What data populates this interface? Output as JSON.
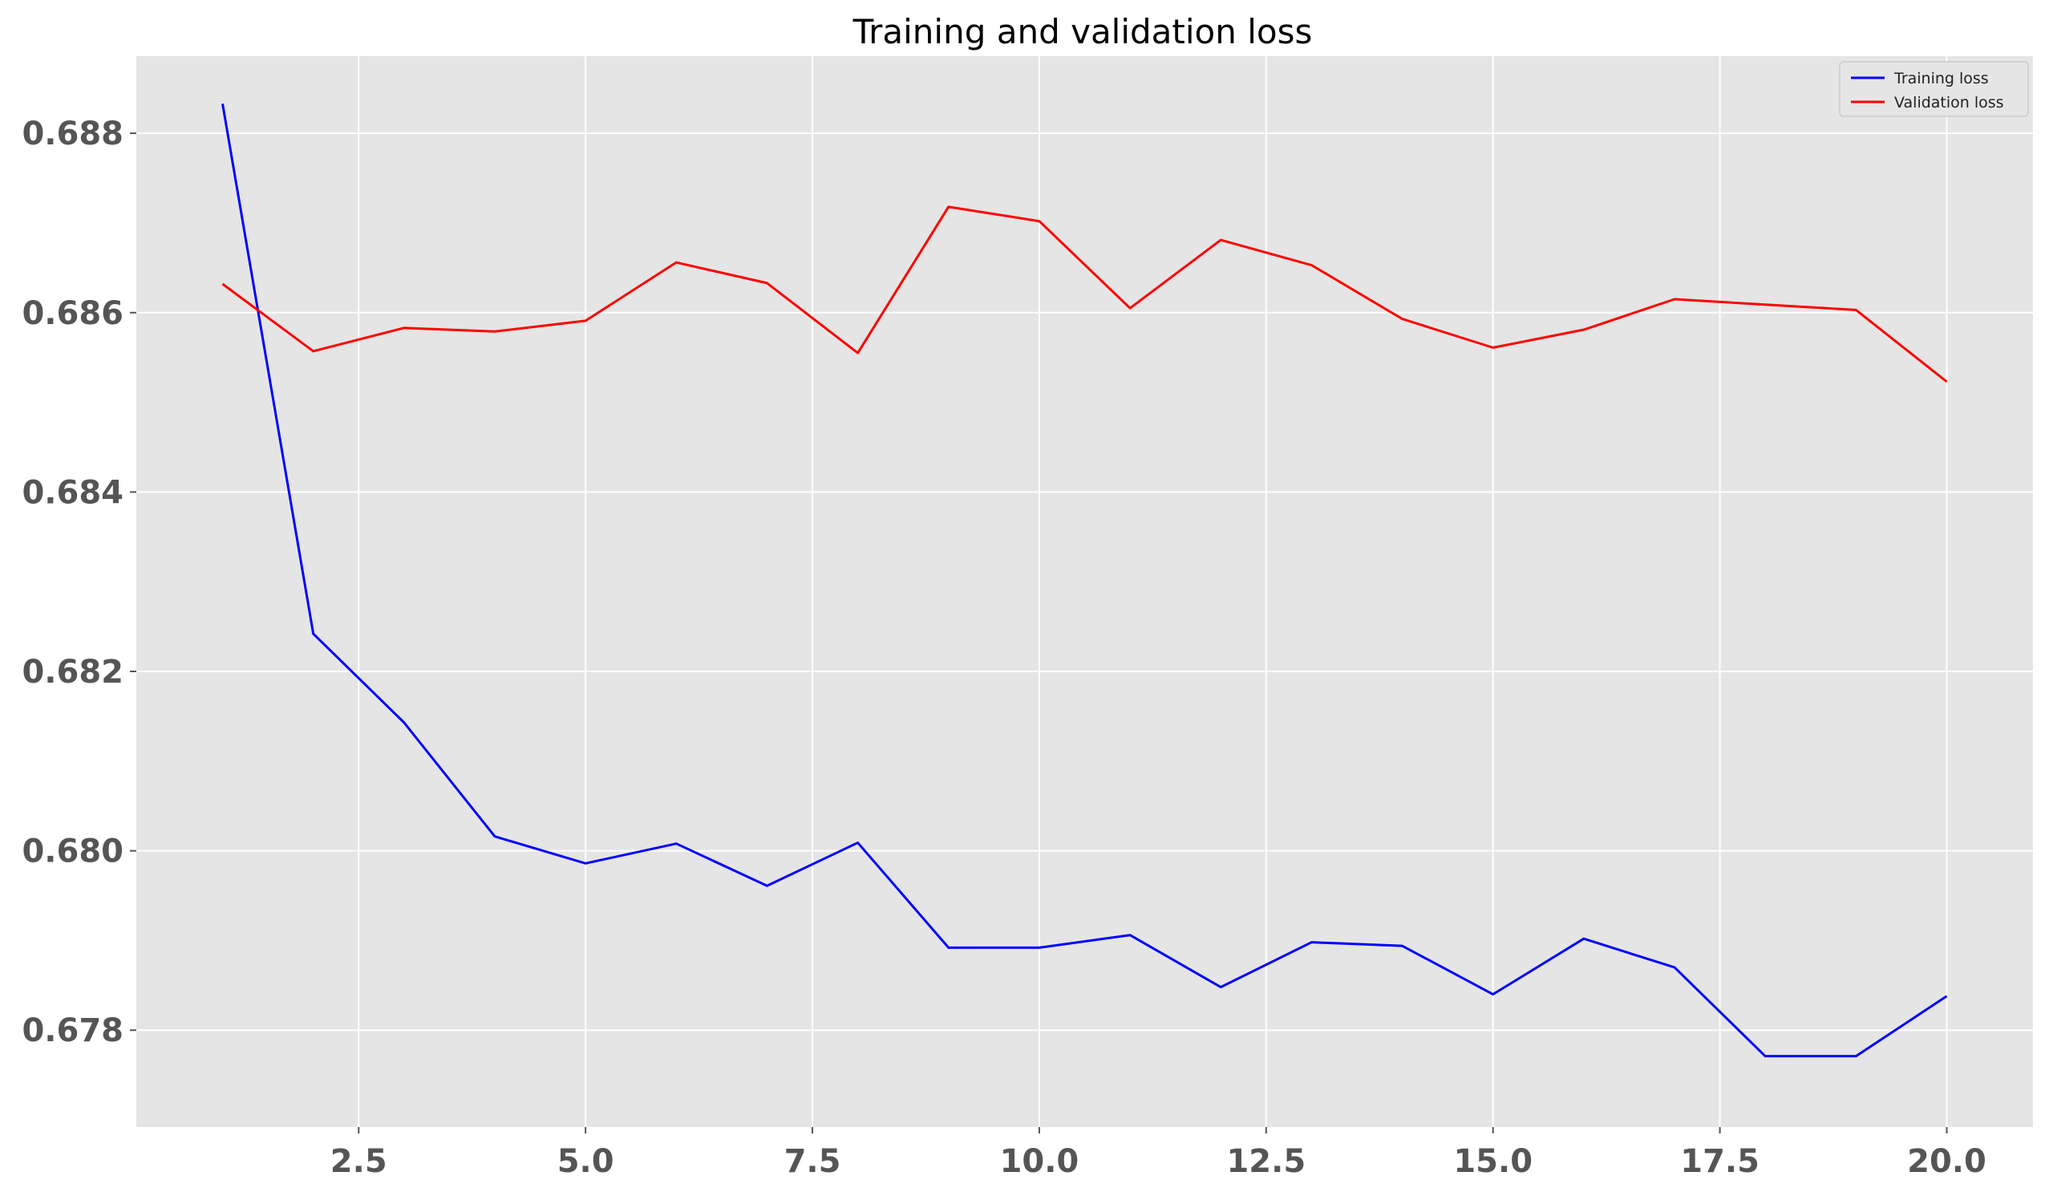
{
  "chart_data": {
    "type": "line",
    "title": "Training and validation loss",
    "xlabel": "",
    "ylabel": "",
    "x": [
      1,
      2,
      3,
      4,
      5,
      6,
      7,
      8,
      9,
      10,
      11,
      12,
      13,
      14,
      15,
      16,
      17,
      18,
      19,
      20
    ],
    "series": [
      {
        "name": "Training loss",
        "color": "#0000ff",
        "values": [
          0.68833,
          0.68242,
          0.68143,
          0.68016,
          0.67986,
          0.68008,
          0.67961,
          0.68009,
          0.67892,
          0.67892,
          0.67906,
          0.67848,
          0.67898,
          0.67894,
          0.6784,
          0.67902,
          0.6787,
          0.67771,
          0.67771,
          0.67838
        ]
      },
      {
        "name": "Validation loss",
        "color": "#ff0000",
        "values": [
          0.68632,
          0.68557,
          0.68583,
          0.68579,
          0.68591,
          0.68656,
          0.68633,
          0.68555,
          0.68718,
          0.68702,
          0.68605,
          0.68681,
          0.68653,
          0.68593,
          0.68561,
          0.68581,
          0.68615,
          0.68609,
          0.68603,
          0.68523
        ]
      }
    ],
    "xlim": [
      0.05,
      20.95
    ],
    "ylim": [
      0.67692,
      0.68886
    ],
    "xticks": [
      2.5,
      5.0,
      7.5,
      10.0,
      12.5,
      15.0,
      17.5,
      20.0
    ],
    "xtick_labels": [
      "2.5",
      "5.0",
      "7.5",
      "10.0",
      "12.5",
      "15.0",
      "17.5",
      "20.0"
    ],
    "yticks": [
      0.678,
      0.68,
      0.682,
      0.684,
      0.686,
      0.688
    ],
    "ytick_labels": [
      "0.678",
      "0.680",
      "0.682",
      "0.684",
      "0.686",
      "0.688"
    ],
    "grid": true,
    "legend_position": "top-right",
    "background_color": "#e5e5e5",
    "grid_color": "#ffffff"
  }
}
